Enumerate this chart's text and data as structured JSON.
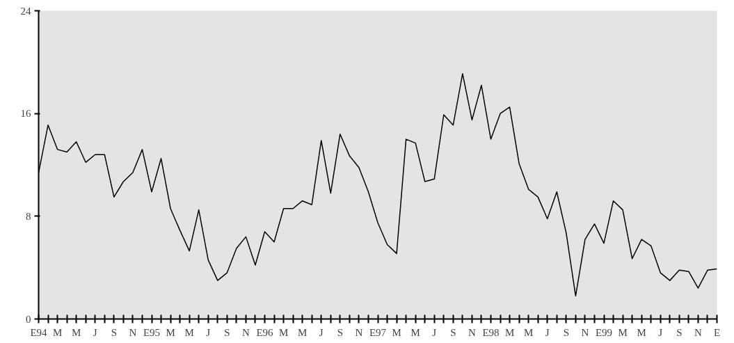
{
  "chart_data": {
    "type": "line",
    "categories": [
      "E94",
      null,
      "M",
      null,
      "M",
      null,
      "J",
      null,
      "S",
      null,
      "N",
      null,
      "E95",
      null,
      "M",
      null,
      "M",
      null,
      "J",
      null,
      "S",
      null,
      "N",
      null,
      "E96",
      null,
      "M",
      null,
      "M",
      null,
      "J",
      null,
      "S",
      null,
      "N",
      null,
      "E97",
      null,
      "M",
      null,
      "M",
      null,
      "J",
      null,
      "S",
      null,
      "N",
      null,
      "E98",
      null,
      "M",
      null,
      "M",
      null,
      "J",
      null,
      "S",
      null,
      "N",
      null,
      "E99",
      null,
      "M",
      null,
      "M",
      null,
      "J",
      null,
      "S",
      null,
      "N",
      null,
      "E"
    ],
    "series": [
      {
        "color": "#000000",
        "values": [
          11.4,
          15.1,
          13.2,
          13.0,
          13.8,
          12.2,
          12.8,
          12.8,
          9.5,
          10.7,
          11.4,
          13.2,
          9.9,
          12.5,
          8.6,
          6.9,
          5.3,
          8.5,
          4.6,
          3.0,
          3.6,
          5.5,
          6.4,
          4.2,
          6.8,
          6.0,
          8.6,
          8.6,
          9.2,
          8.9,
          13.9,
          9.8,
          14.4,
          12.7,
          11.8,
          9.9,
          7.5,
          5.8,
          5.1,
          14.0,
          13.7,
          10.7,
          10.9,
          15.9,
          15.1,
          19.1,
          15.5,
          18.2,
          14.0,
          16.0,
          16.5,
          12.1,
          10.1,
          9.5,
          7.8,
          9.9,
          6.7,
          1.8,
          6.2,
          7.4,
          5.9,
          9.2,
          8.5,
          4.7,
          6.2,
          5.7,
          3.6,
          3.0,
          3.8,
          3.7,
          2.4,
          3.8,
          3.9
        ]
      }
    ],
    "ylim": [
      0,
      24
    ],
    "yticks": [
      0,
      8,
      16,
      24
    ],
    "marker": "none",
    "line_style": "solid"
  }
}
